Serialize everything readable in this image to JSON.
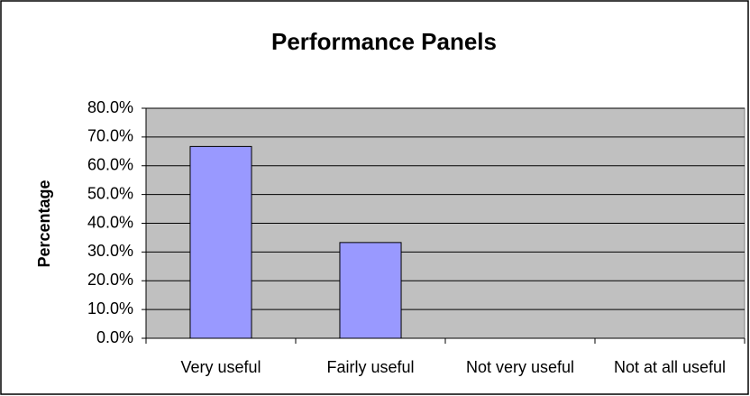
{
  "chart_data": {
    "type": "bar",
    "title": "Performance Panels",
    "y_label": "Percentage",
    "categories": [
      "Very useful",
      "Fairly useful",
      "Not very useful",
      "Not at all useful"
    ],
    "values": [
      66.7,
      33.3,
      0,
      0
    ],
    "color": "#9999ff",
    "ylim": [
      0,
      80
    ],
    "yticks": [
      {
        "value": 0,
        "label": "0.0%"
      },
      {
        "value": 10,
        "label": "10.0%"
      },
      {
        "value": 20,
        "label": "20.0%"
      },
      {
        "value": 30,
        "label": "30.0%"
      },
      {
        "value": 40,
        "label": "40.0%"
      },
      {
        "value": 50,
        "label": "50.0%"
      },
      {
        "value": 60,
        "label": "60.0%"
      },
      {
        "value": 70,
        "label": "70.0%"
      },
      {
        "value": 80,
        "label": "80.0%"
      }
    ],
    "grid": true
  }
}
